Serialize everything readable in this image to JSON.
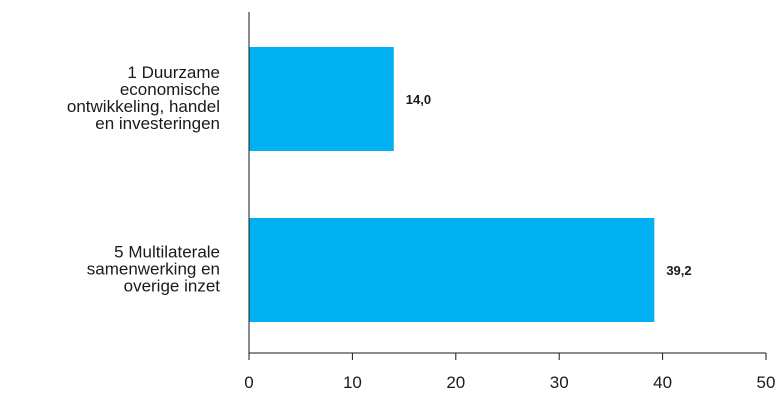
{
  "chart_data": {
    "type": "bar",
    "orientation": "horizontal",
    "categories": [
      [
        "1 Duurzame",
        "economische",
        "ontwikkeling, handel",
        "en investeringen"
      ],
      [
        "5 Multilaterale",
        "samenwerking en",
        "overige inzet"
      ]
    ],
    "values": [
      14.0,
      39.2
    ],
    "value_labels": [
      "14,0",
      "39,2"
    ],
    "xlim": [
      0,
      50
    ],
    "xticks": [
      0,
      10,
      20,
      30,
      40,
      50
    ],
    "tick_labels": [
      "0",
      "10",
      "20",
      "30",
      "40",
      "50"
    ],
    "title": "",
    "xlabel": "",
    "ylabel": "",
    "grid": false,
    "legend": "none",
    "colors": {
      "bar": "#00b0f0",
      "axis": "#1a1a1a",
      "text": "#1a1a1a"
    }
  }
}
